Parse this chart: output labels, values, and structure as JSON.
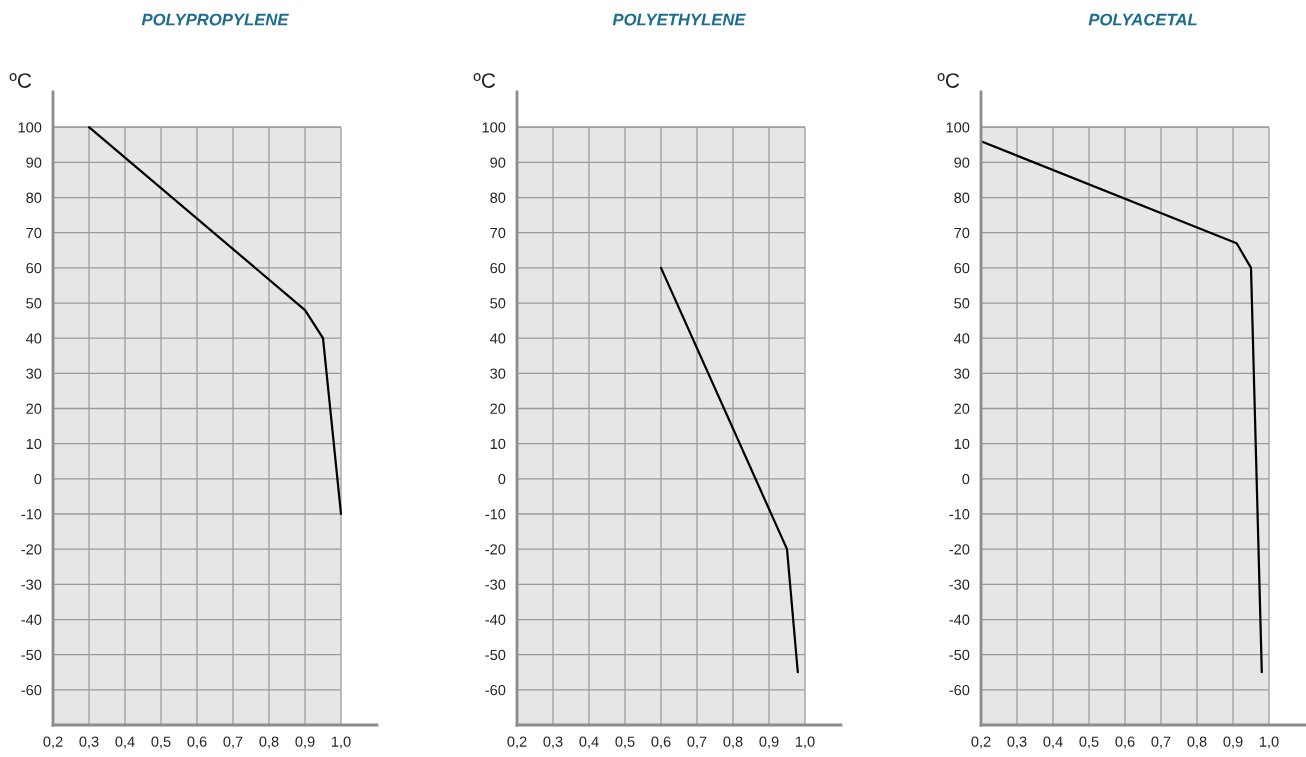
{
  "chart_data": [
    {
      "type": "line",
      "title": "POLYPROPYLENE",
      "ylabel": "ºC",
      "x": [
        0.3,
        0.9,
        0.95,
        1.0
      ],
      "series": [
        {
          "color": "#000000",
          "values": [
            100,
            48,
            40,
            -10
          ]
        }
      ],
      "xlim": [
        0.2,
        1.1
      ],
      "ylim": [
        -70,
        110
      ],
      "xticks": [
        {
          "value": 0.2,
          "label": "0,2"
        },
        {
          "value": 0.3,
          "label": "0,3"
        },
        {
          "value": 0.4,
          "label": "0,4"
        },
        {
          "value": 0.5,
          "label": "0,5"
        },
        {
          "value": 0.6,
          "label": "0,6"
        },
        {
          "value": 0.7,
          "label": "0,7"
        },
        {
          "value": 0.8,
          "label": "0,8"
        },
        {
          "value": 0.9,
          "label": "0,9"
        },
        {
          "value": 1.0,
          "label": "1,0"
        }
      ],
      "yticks": [
        -60,
        -50,
        -40,
        -30,
        -20,
        -10,
        0,
        10,
        20,
        30,
        40,
        50,
        60,
        70,
        80,
        90,
        100
      ],
      "bands": [
        {
          "axis": "y",
          "from": -70,
          "to": 100,
          "color": "#e6e6e6"
        }
      ],
      "grid": true,
      "legend": false,
      "marker": "none",
      "line_style": "solid"
    },
    {
      "type": "line",
      "title": "POLYETHYLENE",
      "ylabel": "ºC",
      "x": [
        0.6,
        0.95,
        0.98
      ],
      "series": [
        {
          "color": "#000000",
          "values": [
            60,
            -20,
            -55
          ]
        }
      ],
      "xlim": [
        0.2,
        1.1
      ],
      "ylim": [
        -70,
        110
      ],
      "xticks": [
        {
          "value": 0.2,
          "label": "0,2"
        },
        {
          "value": 0.3,
          "label": "0,3"
        },
        {
          "value": 0.4,
          "label": "0,4"
        },
        {
          "value": 0.5,
          "label": "0,5"
        },
        {
          "value": 0.6,
          "label": "0,6"
        },
        {
          "value": 0.7,
          "label": "0,7"
        },
        {
          "value": 0.8,
          "label": "0,8"
        },
        {
          "value": 0.9,
          "label": "0,9"
        },
        {
          "value": 1.0,
          "label": "1,0"
        }
      ],
      "yticks": [
        -60,
        -50,
        -40,
        -30,
        -20,
        -10,
        0,
        10,
        20,
        30,
        40,
        50,
        60,
        70,
        80,
        90,
        100
      ],
      "bands": [
        {
          "axis": "y",
          "from": -70,
          "to": 100,
          "color": "#e6e6e6"
        }
      ],
      "grid": true,
      "legend": false,
      "marker": "none",
      "line_style": "solid"
    },
    {
      "type": "line",
      "title": "POLYACETAL",
      "ylabel": "ºC",
      "x": [
        0.2,
        0.91,
        0.95,
        0.98
      ],
      "series": [
        {
          "color": "#000000",
          "values": [
            96,
            67,
            60,
            -55
          ]
        }
      ],
      "xlim": [
        0.2,
        1.1
      ],
      "ylim": [
        -70,
        110
      ],
      "xticks": [
        {
          "value": 0.2,
          "label": "0,2"
        },
        {
          "value": 0.3,
          "label": "0,3"
        },
        {
          "value": 0.4,
          "label": "0,4"
        },
        {
          "value": 0.5,
          "label": "0,5"
        },
        {
          "value": 0.6,
          "label": "0,6"
        },
        {
          "value": 0.7,
          "label": "0,7"
        },
        {
          "value": 0.8,
          "label": "0,8"
        },
        {
          "value": 0.9,
          "label": "0,9"
        },
        {
          "value": 1.0,
          "label": "1,0"
        }
      ],
      "yticks": [
        -60,
        -50,
        -40,
        -30,
        -20,
        -10,
        0,
        10,
        20,
        30,
        40,
        50,
        60,
        70,
        80,
        90,
        100
      ],
      "bands": [
        {
          "axis": "y",
          "from": -70,
          "to": 100,
          "color": "#e6e6e6"
        }
      ],
      "grid": true,
      "legend": false,
      "marker": "none",
      "line_style": "solid"
    }
  ]
}
